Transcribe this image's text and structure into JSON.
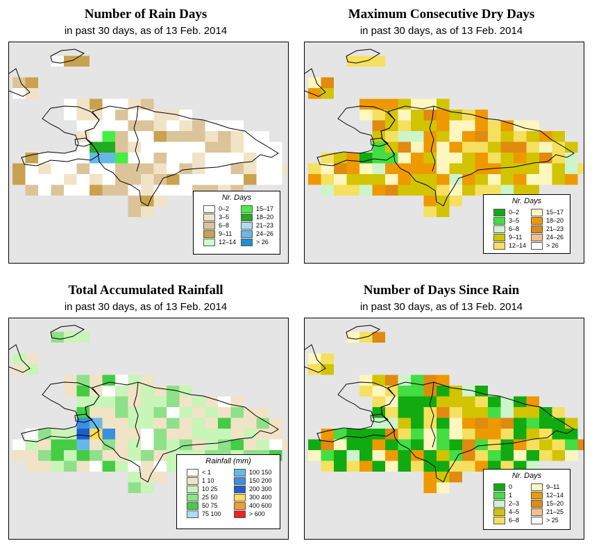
{
  "panels": [
    {
      "id": "rain_days",
      "title": "Number of Rain Days",
      "subtitle": "in past 30 days, as of  13 Feb. 2014",
      "legend": {
        "title": "Nr. Days",
        "items": [
          {
            "label": "0–2",
            "color": "#ffffff"
          },
          {
            "label": "3–5",
            "color": "#f1e3c6"
          },
          {
            "label": "6–8",
            "color": "#dcc49a"
          },
          {
            "label": "9–11",
            "color": "#c8a24e"
          },
          {
            "label": "12–14",
            "color": "#ccffcc"
          },
          {
            "label": "15–17",
            "color": "#44ee44"
          },
          {
            "label": "18–20",
            "color": "#22aa22"
          },
          {
            "label": "21–23",
            "color": "#aaddf0"
          },
          {
            "label": "24–26",
            "color": "#66b8e8"
          },
          {
            "label": "> 26",
            "color": "#1f8fd0"
          }
        ]
      }
    },
    {
      "id": "max_dry",
      "title": "Maximum Consecutive Dry Days",
      "subtitle": "in past 30 days, as of  13 Feb. 2014",
      "legend": {
        "title": "Nr. Days",
        "items": [
          {
            "label": "0–2",
            "color": "#11aa11"
          },
          {
            "label": "3–5",
            "color": "#44dd44"
          },
          {
            "label": "6–8",
            "color": "#ccf5cc"
          },
          {
            "label": "9–11",
            "color": "#d2c400"
          },
          {
            "label": "12–14",
            "color": "#f5e060"
          },
          {
            "label": "15–17",
            "color": "#fff6c0"
          },
          {
            "label": "18–20",
            "color": "#ee9900"
          },
          {
            "label": "21–23",
            "color": "#e08a10"
          },
          {
            "label": "24–26",
            "color": "#f5c090"
          },
          {
            "label": "> 26",
            "color": "#ffffff"
          }
        ]
      }
    },
    {
      "id": "total_rain",
      "title": "Total Accumulated Rainfall",
      "subtitle": "in past 30 days, as of  13 Feb. 2014",
      "legend": {
        "title": "Rainfall (mm)",
        "items": [
          {
            "label": "< 1",
            "color": "#ffffff"
          },
          {
            "label": "1    10",
            "color": "#f1e3c6"
          },
          {
            "label": "10    25",
            "color": "#c8f5b8"
          },
          {
            "label": "25    50",
            "color": "#8fe08a"
          },
          {
            "label": "50    75",
            "color": "#44cc44"
          },
          {
            "label": "75   100",
            "color": "#aaddf0"
          },
          {
            "label": "100  150",
            "color": "#66b8e8"
          },
          {
            "label": "150  200",
            "color": "#3a8fe0"
          },
          {
            "label": "200  300",
            "color": "#1c5fcc"
          },
          {
            "label": "300  400",
            "color": "#ffdd55"
          },
          {
            "label": "400  600",
            "color": "#ff9933"
          },
          {
            "label": "> 600",
            "color": "#ee2222"
          }
        ]
      }
    },
    {
      "id": "since_rain",
      "title": "Number of Days Since Rain",
      "subtitle": "in past 30 days, as of  13 Feb. 2014",
      "legend": {
        "title": "Nr. Days",
        "items": [
          {
            "label": "0",
            "color": "#11aa11"
          },
          {
            "label": "1",
            "color": "#44dd44"
          },
          {
            "label": "2–3",
            "color": "#ccf5cc"
          },
          {
            "label": "4–5",
            "color": "#d2c400"
          },
          {
            "label": "6–8",
            "color": "#f5e060"
          },
          {
            "label": "9–11",
            "color": "#fff6c0"
          },
          {
            "label": "12–14",
            "color": "#ee9900"
          },
          {
            "label": "15–20",
            "color": "#e08a10"
          },
          {
            "label": "21–25",
            "color": "#f5c090"
          },
          {
            "label": "> 25",
            "color": "#ffffff"
          }
        ]
      }
    }
  ],
  "colors": {
    "ocean": "#e5e5e5",
    "coastline": "#000000"
  }
}
